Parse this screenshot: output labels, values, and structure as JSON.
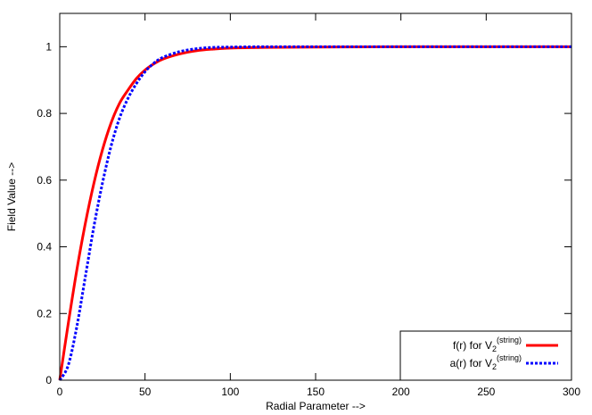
{
  "chart_data": {
    "type": "line",
    "title": "",
    "xlabel": "Radial Parameter -->",
    "ylabel": "Field Value -->",
    "xlim": [
      0,
      300
    ],
    "ylim": [
      0,
      1.1
    ],
    "xticks": [
      0,
      50,
      100,
      150,
      200,
      250,
      300
    ],
    "yticks": [
      0,
      0.2,
      0.4,
      0.6,
      0.8,
      1
    ],
    "xtick_labels": [
      "0",
      "50",
      "100",
      "150",
      "200",
      "250",
      "300"
    ],
    "ytick_labels": [
      "0",
      "0.2",
      "0.4",
      "0.6",
      "0.8",
      "1"
    ],
    "grid": false,
    "legend_position": "bottom-right",
    "series": [
      {
        "name": "f(r) for V2(string)",
        "legend_main": "f(r) for V",
        "legend_sub": "2",
        "legend_sup": "(string)",
        "color": "#ff0000",
        "style": "solid",
        "x": [
          0,
          5,
          10,
          15,
          20,
          25,
          30,
          35,
          40,
          45,
          50,
          55,
          60,
          70,
          80,
          90,
          100,
          120,
          150,
          200,
          250,
          300
        ],
        "y": [
          0,
          0.17,
          0.33,
          0.47,
          0.59,
          0.69,
          0.77,
          0.83,
          0.87,
          0.905,
          0.93,
          0.948,
          0.962,
          0.978,
          0.988,
          0.993,
          0.996,
          0.998,
          0.999,
          1.0,
          1.0,
          1.0
        ]
      },
      {
        "name": "a(r) for V2(string)",
        "legend_main": "a(r) for V",
        "legend_sub": "2",
        "legend_sup": "(string)",
        "color": "#0000ff",
        "style": "dashed",
        "x": [
          0,
          5,
          10,
          15,
          20,
          25,
          30,
          35,
          40,
          45,
          50,
          55,
          60,
          70,
          80,
          90,
          100,
          120,
          150,
          200,
          250,
          300
        ],
        "y": [
          0,
          0.045,
          0.16,
          0.31,
          0.46,
          0.59,
          0.7,
          0.785,
          0.845,
          0.89,
          0.925,
          0.95,
          0.967,
          0.985,
          0.994,
          0.998,
          0.999,
          1.0,
          1.0,
          1.0,
          1.0,
          1.0
        ]
      }
    ]
  }
}
